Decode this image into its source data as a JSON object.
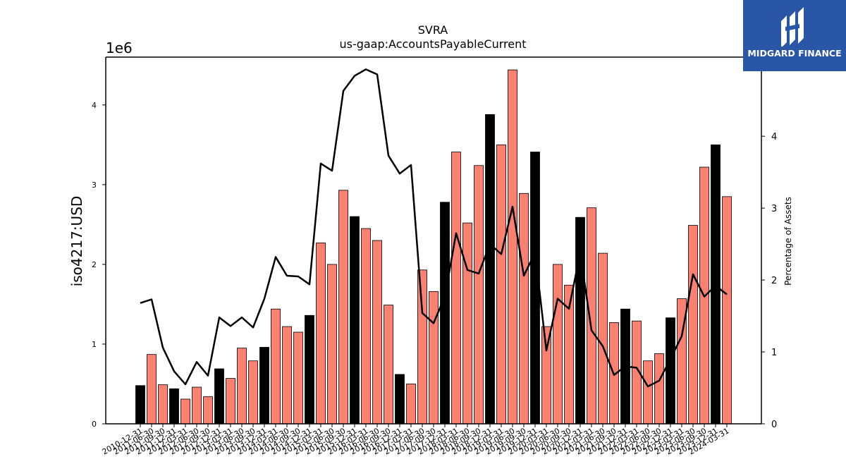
{
  "chart_data": {
    "type": "bar",
    "title": "SVRA",
    "subtitle": "us-gaap:AccountsPayableCurrent",
    "ylabel": "iso4217:USD",
    "ylabel_right": "Percentage of Assets",
    "y_offset_label": "1e6",
    "ylim": [
      0,
      4600000
    ],
    "ylim_right": [
      0,
      5.1
    ],
    "yticks": [
      0,
      1,
      2,
      3,
      4
    ],
    "yticks_right": [
      0,
      1,
      2,
      3,
      4
    ],
    "categories": [
      "2010-12-31",
      "2011-06-30",
      "2011-09-30",
      "2011-12-31",
      "2012-03-31",
      "2012-06-30",
      "2012-09-30",
      "2012-12-31",
      "2013-03-31",
      "2013-06-30",
      "2013-09-30",
      "2013-12-31",
      "2014-03-31",
      "2014-06-30",
      "2014-09-30",
      "2014-12-31",
      "2015-03-31",
      "2015-06-30",
      "2015-09-30",
      "2015-12-31",
      "2016-03-31",
      "2016-06-30",
      "2016-09-30",
      "2016-12-31",
      "2017-03-31",
      "2017-06-30",
      "2017-09-30",
      "2017-12-31",
      "2018-03-31",
      "2018-06-30",
      "2018-09-30",
      "2018-12-31",
      "2019-03-31",
      "2019-06-30",
      "2019-09-30",
      "2019-12-31",
      "2020-03-31",
      "2020-06-30",
      "2020-09-30",
      "2020-12-31",
      "2021-03-31",
      "2021-06-30",
      "2021-09-30",
      "2021-12-31",
      "2022-03-31",
      "2022-06-30",
      "2022-09-30",
      "2022-12-31",
      "2023-03-31",
      "2023-06-30",
      "2023-09-30",
      "2023-12-31",
      "2024-03-31"
    ],
    "series": [
      {
        "type": "bar",
        "values": [
          480000,
          870000,
          490000,
          440000,
          310000,
          460000,
          340000,
          690000,
          570000,
          950000,
          790000,
          960000,
          1440000,
          1220000,
          1150000,
          1360000,
          2270000,
          2000000,
          2930000,
          2600000,
          2450000,
          2300000,
          1490000,
          620000,
          500000,
          1930000,
          1660000,
          2780000,
          3410000,
          2520000,
          3240000,
          3880000,
          3500000,
          4440000,
          2890000,
          3410000,
          1220000,
          2000000,
          1740000,
          2590000,
          2710000,
          2140000,
          1270000,
          1440000,
          1290000,
          790000,
          880000,
          1330000,
          1570000,
          2490000,
          3220000,
          3500000,
          2850000
        ],
        "year_end": [
          true,
          false,
          false,
          true,
          false,
          false,
          false,
          true,
          false,
          false,
          false,
          true,
          false,
          false,
          false,
          true,
          false,
          false,
          false,
          true,
          false,
          false,
          false,
          true,
          false,
          false,
          false,
          true,
          false,
          false,
          false,
          true,
          false,
          false,
          false,
          true,
          false,
          false,
          false,
          true,
          false,
          false,
          false,
          true,
          false,
          false,
          false,
          true,
          false,
          false,
          false,
          true,
          false
        ]
      },
      {
        "type": "line",
        "axis": "right",
        "values": [
          1.68,
          1.73,
          1.06,
          0.73,
          0.55,
          0.86,
          0.67,
          1.48,
          1.36,
          1.48,
          1.34,
          1.74,
          2.32,
          2.06,
          2.05,
          1.94,
          3.62,
          3.52,
          4.63,
          4.84,
          4.93,
          4.86,
          3.73,
          3.48,
          3.6,
          1.54,
          1.4,
          1.77,
          2.65,
          2.14,
          2.09,
          2.5,
          2.36,
          3.02,
          2.06,
          2.38,
          1.02,
          1.74,
          1.6,
          2.38,
          1.3,
          1.08,
          0.68,
          0.8,
          0.78,
          0.52,
          0.6,
          0.9,
          1.22,
          2.08,
          1.77,
          1.92,
          1.8
        ]
      }
    ],
    "colors": {
      "bar": "#fa8072",
      "bar_year_end": "#000000",
      "line": "#000000"
    }
  },
  "logo": {
    "text": "MIDGARD FINANCE",
    "bg": "#2a56a8"
  }
}
